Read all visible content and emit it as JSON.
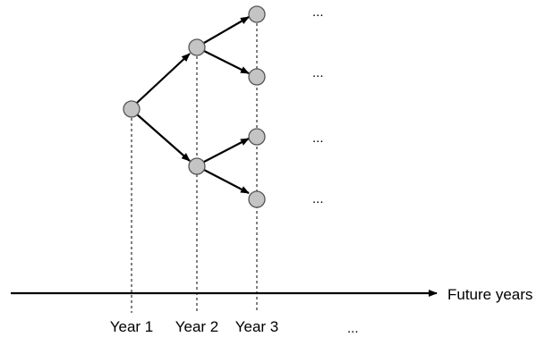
{
  "diagram": {
    "axis_label": "Future years",
    "year_labels": [
      "Year 1",
      "Year 2",
      "Year 3"
    ],
    "year_labels_continuation": "...",
    "branch_continuations": [
      "...",
      "...",
      "...",
      "..."
    ],
    "colors": {
      "node_fill": "#c4c4c4",
      "node_stroke": "#555555",
      "edge": "#000000"
    }
  }
}
